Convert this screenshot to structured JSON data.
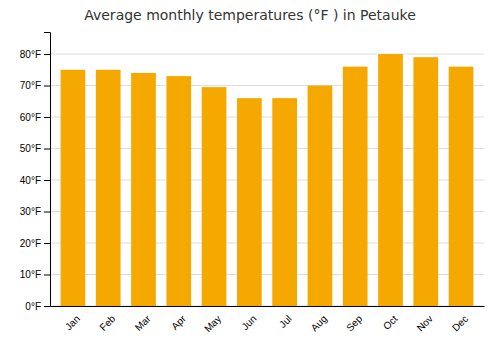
{
  "chart_data": {
    "type": "bar",
    "title": "Average monthly temperatures (°F ) in Petauke",
    "categories": [
      "Jan",
      "Feb",
      "Mar",
      "Apr",
      "May",
      "Jun",
      "Jul",
      "Aug",
      "Sep",
      "Oct",
      "Nov",
      "Dec"
    ],
    "values": [
      75,
      75,
      74,
      73,
      69.5,
      66,
      66,
      70,
      76,
      80,
      79,
      76
    ],
    "color": "#F5A800",
    "ylim": [
      0,
      87
    ],
    "yticks": [
      {
        "value": 0,
        "label": "0°F"
      },
      {
        "value": 10,
        "label": "10°F"
      },
      {
        "value": 20,
        "label": "20°F"
      },
      {
        "value": 30,
        "label": "30°F"
      },
      {
        "value": 40,
        "label": "40°F"
      },
      {
        "value": 50,
        "label": "50°F"
      },
      {
        "value": 60,
        "label": "60°F"
      },
      {
        "value": 70,
        "label": "70°F"
      },
      {
        "value": 80,
        "label": "80°F"
      }
    ],
    "grid": true
  }
}
